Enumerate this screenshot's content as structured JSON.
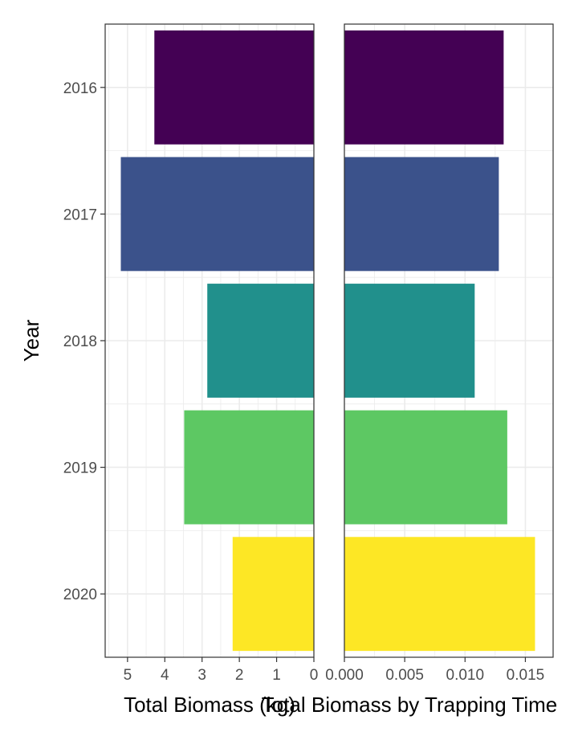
{
  "chart_data": [
    {
      "type": "bar",
      "orientation": "horizontal",
      "x_direction": "reversed",
      "categories": [
        "2016",
        "2017",
        "2018",
        "2019",
        "2020"
      ],
      "values": [
        4.28,
        5.18,
        2.86,
        3.48,
        2.18
      ],
      "colors": [
        "#440154",
        "#3B528B",
        "#21908C",
        "#5DC863",
        "#FDE725"
      ],
      "xlabel": "Total Biomass (kg)",
      "ylabel": "Year",
      "xlim": [
        0,
        5.6
      ],
      "xticks": [
        5,
        4,
        3,
        2,
        1,
        0
      ],
      "xtick_labels": [
        "5",
        "4",
        "3",
        "2",
        "1",
        "0"
      ],
      "grid": true
    },
    {
      "type": "bar",
      "orientation": "horizontal",
      "categories": [
        "2016",
        "2017",
        "2018",
        "2019",
        "2020"
      ],
      "values": [
        0.0132,
        0.0128,
        0.0108,
        0.0135,
        0.0158
      ],
      "colors": [
        "#440154",
        "#3B528B",
        "#21908C",
        "#5DC863",
        "#FDE725"
      ],
      "xlabel": "Total Biomass by Trapping Time",
      "xlim": [
        0,
        0.0173
      ],
      "xticks": [
        0,
        0.005,
        0.01,
        0.015
      ],
      "xtick_labels": [
        "0.000",
        "0.005",
        "0.010",
        "0.015"
      ],
      "grid": true
    }
  ]
}
